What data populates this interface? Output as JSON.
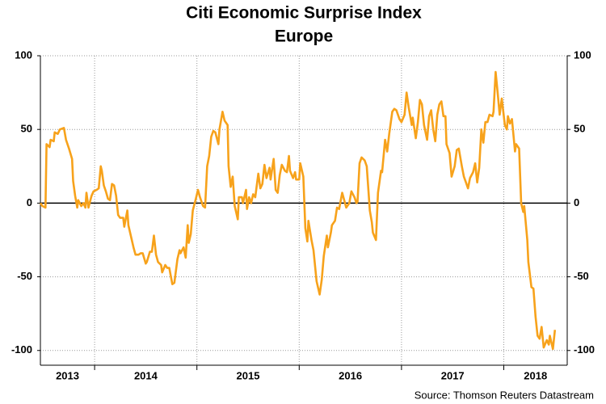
{
  "chart_data": {
    "type": "line",
    "title": "Citi Economic Surprise Index",
    "subtitle": "Europe",
    "source": "Source: Thomson Reuters Datastream",
    "xlim": [
      2013.47,
      2018.62
    ],
    "xticks": [
      2014,
      2015,
      2016,
      2017,
      2018
    ],
    "x_labels": [
      2013,
      2014,
      2015,
      2016,
      2017,
      2018
    ],
    "ylim": [
      -110,
      100
    ],
    "yticks": [
      -100,
      -50,
      0,
      50,
      100
    ],
    "grid": true,
    "zero_line": true,
    "series": [
      {
        "name": "Europe",
        "color": "#f7a21b",
        "x": [
          2013.47,
          2013.49,
          2013.52,
          2013.53,
          2013.56,
          2013.57,
          2013.6,
          2013.61,
          2013.64,
          2013.66,
          2013.7,
          2013.72,
          2013.75,
          2013.78,
          2013.79,
          2013.81,
          2013.83,
          2013.84,
          2013.87,
          2013.89,
          2013.91,
          2013.92,
          2013.94,
          2013.97,
          2013.99,
          2014.02,
          2014.04,
          2014.06,
          2014.07,
          2014.09,
          2014.11,
          2014.13,
          2014.15,
          2014.17,
          2014.19,
          2014.21,
          2014.23,
          2014.25,
          2014.28,
          2014.29,
          2014.32,
          2014.33,
          2014.36,
          2014.38,
          2014.4,
          2014.43,
          2014.45,
          2014.47,
          2014.5,
          2014.51,
          2014.54,
          2014.56,
          2014.58,
          2014.6,
          2014.62,
          2014.65,
          2014.66,
          2014.69,
          2014.71,
          2014.73,
          2014.76,
          2014.78,
          2014.81,
          2014.83,
          2014.84,
          2014.87,
          2014.89,
          2014.91,
          2014.92,
          2014.94,
          2014.96,
          2014.99,
          2015.01,
          2015.03,
          2015.06,
          2015.08,
          2015.1,
          2015.12,
          2015.14,
          2015.16,
          2015.18,
          2015.21,
          2015.22,
          2015.25,
          2015.27,
          2015.3,
          2015.31,
          2015.33,
          2015.35,
          2015.37,
          2015.4,
          2015.41,
          2015.44,
          2015.45,
          2015.48,
          2015.49,
          2015.51,
          2015.53,
          2015.55,
          2015.57,
          2015.6,
          2015.62,
          2015.64,
          2015.66,
          2015.68,
          2015.71,
          2015.72,
          2015.75,
          2015.77,
          2015.79,
          2015.81,
          2015.83,
          2015.86,
          2015.88,
          2015.9,
          2015.91,
          2015.94,
          2015.96,
          2015.97,
          2016.0,
          2016.01,
          2016.04,
          2016.06,
          2016.08,
          2016.09,
          2016.12,
          2016.14,
          2016.17,
          2016.2,
          2016.22,
          2016.24,
          2016.27,
          2016.28,
          2016.31,
          2016.32,
          2016.35,
          2016.37,
          2016.39,
          2016.42,
          2016.44,
          2016.46,
          2016.49,
          2016.51,
          2016.54,
          2016.56,
          2016.57,
          2016.59,
          2016.61,
          2016.64,
          2016.66,
          2016.69,
          2016.71,
          2016.72,
          2016.75,
          2016.77,
          2016.8,
          2016.81,
          2016.84,
          2016.86,
          2016.88,
          2016.91,
          2016.93,
          2016.95,
          2016.98,
          2017.0,
          2017.03,
          2017.05,
          2017.07,
          2017.1,
          2017.11,
          2017.14,
          2017.16,
          2017.18,
          2017.2,
          2017.22,
          2017.25,
          2017.27,
          2017.29,
          2017.31,
          2017.33,
          2017.35,
          2017.37,
          2017.39,
          2017.41,
          2017.43,
          2017.44,
          2017.47,
          2017.49,
          2017.52,
          2017.54,
          2017.56,
          2017.59,
          2017.61,
          2017.63,
          2017.65,
          2017.67,
          2017.7,
          2017.72,
          2017.74,
          2017.76,
          2017.78,
          2017.8,
          2017.82,
          2017.84,
          2017.86,
          2017.89,
          2017.9,
          2017.92,
          2017.94,
          2017.96,
          2017.98,
          2018.01,
          2018.03,
          2018.04,
          2018.06,
          2018.08,
          2018.11,
          2018.12,
          2018.15,
          2018.17,
          2018.19,
          2018.2,
          2018.23,
          2018.24,
          2018.27,
          2018.29,
          2018.31,
          2018.33,
          2018.35,
          2018.37,
          2018.39,
          2018.42,
          2018.44,
          2018.45,
          2018.48,
          2018.5
        ],
        "values": [
          0,
          -2,
          -3,
          40,
          38,
          43,
          42,
          48,
          47,
          50,
          51,
          43,
          37,
          30,
          15,
          5,
          -3,
          2,
          -2,
          0,
          -3,
          7,
          -3,
          5,
          8,
          9,
          10,
          25,
          22,
          12,
          8,
          3,
          2,
          13,
          12,
          5,
          -8,
          -10,
          -10,
          -16,
          -5,
          -15,
          -24,
          -30,
          -35,
          -35,
          -34,
          -34,
          -41,
          -40,
          -33,
          -33,
          -22,
          -35,
          -40,
          -42,
          -47,
          -42,
          -44,
          -44,
          -55,
          -54,
          -38,
          -32,
          -34,
          -30,
          -37,
          -15,
          -27,
          -21,
          -5,
          3,
          9,
          4,
          -2,
          -3,
          25,
          32,
          45,
          49,
          48,
          40,
          50,
          62,
          56,
          53,
          25,
          11,
          18,
          -2,
          -11,
          4,
          4,
          0,
          9,
          -4,
          4,
          0,
          6,
          4,
          20,
          10,
          13,
          26,
          17,
          24,
          16,
          30,
          9,
          7,
          19,
          26,
          22,
          21,
          32,
          22,
          17,
          21,
          16,
          16,
          27,
          18,
          -17,
          -26,
          -12,
          -25,
          -32,
          -53,
          -62,
          -52,
          -36,
          -22,
          -30,
          -20,
          -15,
          -12,
          -3,
          -4,
          7,
          2,
          -3,
          0,
          8,
          4,
          0,
          1,
          27,
          31,
          29,
          25,
          -5,
          -13,
          -20,
          -25,
          7,
          22,
          21,
          43,
          35,
          47,
          62,
          64,
          63,
          57,
          55,
          60,
          75,
          65,
          53,
          58,
          44,
          55,
          70,
          67,
          53,
          43,
          59,
          63,
          50,
          42,
          60,
          67,
          69,
          59,
          59,
          40,
          34,
          18,
          25,
          36,
          37,
          25,
          18,
          14,
          10,
          17,
          21,
          27,
          14,
          24,
          50,
          41,
          55,
          55,
          60,
          59,
          62,
          89,
          75,
          60,
          71,
          53,
          50,
          59,
          54,
          57,
          35,
          40,
          37,
          0,
          -6,
          -2,
          -25,
          -40,
          -57,
          -58,
          -77,
          -90,
          -92,
          -84,
          -98,
          -93,
          -96,
          -90,
          -99,
          -86
        ]
      }
    ]
  }
}
